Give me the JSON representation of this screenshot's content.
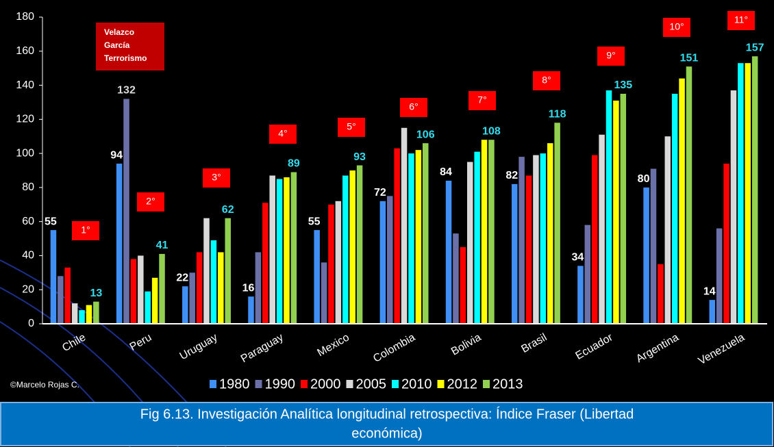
{
  "chart_data": {
    "type": "bar",
    "categories": [
      "Chile",
      "Peru",
      "Uruguay",
      "Paraguay",
      "Mexico",
      "Colombia",
      "Bolivia",
      "Brasil",
      "Ecuador",
      "Argentina",
      "Venezuela"
    ],
    "series": [
      {
        "name": "1980",
        "color": "#3f8ff5",
        "label_color": "#ffffff",
        "values": [
          55,
          94,
          22,
          16,
          55,
          72,
          84,
          82,
          34,
          80,
          14
        ],
        "value_labels": [
          55,
          94,
          22,
          16,
          55,
          72,
          84,
          82,
          34,
          80,
          14
        ]
      },
      {
        "name": "1990",
        "color": "#6b70a8",
        "label_color": "#d9d9d9",
        "values": [
          28,
          132,
          30,
          42,
          36,
          75,
          53,
          98,
          58,
          91,
          56
        ],
        "value_labels": [
          null,
          132,
          null,
          null,
          null,
          null,
          null,
          null,
          null,
          null,
          null
        ]
      },
      {
        "name": "2000",
        "color": "#ff0000",
        "values": [
          33,
          38,
          42,
          71,
          70,
          103,
          45,
          87,
          99,
          35,
          94
        ]
      },
      {
        "name": "2005",
        "color": "#d9d9d9",
        "values": [
          12,
          40,
          62,
          87,
          72,
          115,
          95,
          99,
          111,
          110,
          137
        ]
      },
      {
        "name": "2010",
        "color": "#00ffff",
        "values": [
          8,
          19,
          49,
          85,
          87,
          100,
          101,
          100,
          137,
          135,
          153
        ]
      },
      {
        "name": "2012",
        "color": "#ffff00",
        "values": [
          11,
          27,
          42,
          86,
          90,
          102,
          108,
          106,
          131,
          144,
          153
        ]
      },
      {
        "name": "2013",
        "color": "#92d050",
        "label_color": "#33ddee",
        "values": [
          13,
          41,
          62,
          89,
          93,
          106,
          108,
          118,
          135,
          151,
          157
        ],
        "value_labels": [
          13,
          41,
          62,
          89,
          93,
          106,
          108,
          118,
          135,
          151,
          157
        ]
      }
    ],
    "ylim": [
      0,
      180
    ],
    "yticks": [
      0,
      20,
      40,
      60,
      80,
      100,
      120,
      140,
      160,
      180
    ],
    "grid": false,
    "annotations": [
      "1°",
      "2°",
      "3°",
      "4°",
      "5°",
      "6°",
      "7°",
      "8°",
      "9°",
      "10°",
      "11°"
    ],
    "note_lines": [
      "Velazco",
      "García",
      "Terrorismo"
    ],
    "credit": "©Marcelo Rojas C.",
    "caption_lines": [
      "Fig 6.13. Investigación Analítica longitudinal retrospectiva: Índice Fraser (Libertad",
      "económica)"
    ]
  }
}
